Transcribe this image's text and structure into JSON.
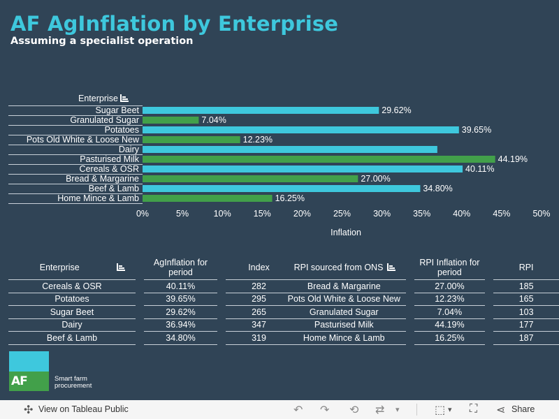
{
  "header": {
    "title": "AF AgInflation by Enterprise",
    "subtitle": "Assuming a specialist operation"
  },
  "colors": {
    "background": "#304456",
    "cyan": "#3ec8dd",
    "green": "#42a04a"
  },
  "chart_data": {
    "type": "bar",
    "orientation": "horizontal",
    "category_header": "Enterprise",
    "categories": [
      "Sugar Beet",
      "Granulated Sugar",
      "Potatoes",
      "Pots Old White & Loose New",
      "Dairy",
      "Pasturised Milk",
      "Cereals & OSR",
      "Bread & Margarine",
      "Beef & Lamb",
      "Home Mince & Lamb"
    ],
    "values": [
      29.62,
      7.04,
      39.65,
      12.23,
      36.94,
      44.19,
      40.11,
      27.0,
      34.8,
      16.25
    ],
    "data_labels": [
      "29.62%",
      "7.04%",
      "39.65%",
      "12.23%",
      "",
      "44.19%",
      "40.11%",
      "27.00%",
      "34.80%",
      "16.25%"
    ],
    "bar_colors": [
      "cyan",
      "green",
      "cyan",
      "green",
      "cyan",
      "green",
      "cyan",
      "green",
      "cyan",
      "green"
    ],
    "xlabel": "Inflation",
    "xlim": [
      0,
      50
    ],
    "xticks": [
      "0%",
      "5%",
      "10%",
      "15%",
      "20%",
      "25%",
      "30%",
      "35%",
      "40%",
      "45%",
      "50%"
    ],
    "grid": false
  },
  "table_left": {
    "headers": [
      "Enterprise",
      "AgInflation for period",
      "Index"
    ],
    "rows": [
      [
        "Cereals & OSR",
        "40.11%",
        "282"
      ],
      [
        "Potatoes",
        "39.65%",
        "295"
      ],
      [
        "Sugar Beet",
        "29.62%",
        "265"
      ],
      [
        "Dairy",
        "36.94%",
        "347"
      ],
      [
        "Beef & Lamb",
        "34.80%",
        "319"
      ]
    ]
  },
  "table_right": {
    "headers": [
      "RPI sourced from ONS",
      "RPI Inflation for period",
      "RPI"
    ],
    "rows": [
      [
        "Bread & Margarine",
        "27.00%",
        "185"
      ],
      [
        "Pots Old White & Loose New",
        "12.23%",
        "165"
      ],
      [
        "Granulated Sugar",
        "7.04%",
        "103"
      ],
      [
        "Pasturised Milk",
        "44.19%",
        "177"
      ],
      [
        "Home Mince & Lamb",
        "16.25%",
        "187"
      ]
    ]
  },
  "logo": {
    "mark": "AF",
    "line1": "Smart farm",
    "line2": "procurement"
  },
  "footer": {
    "view_label": "View on Tableau Public",
    "share_label": "Share"
  }
}
